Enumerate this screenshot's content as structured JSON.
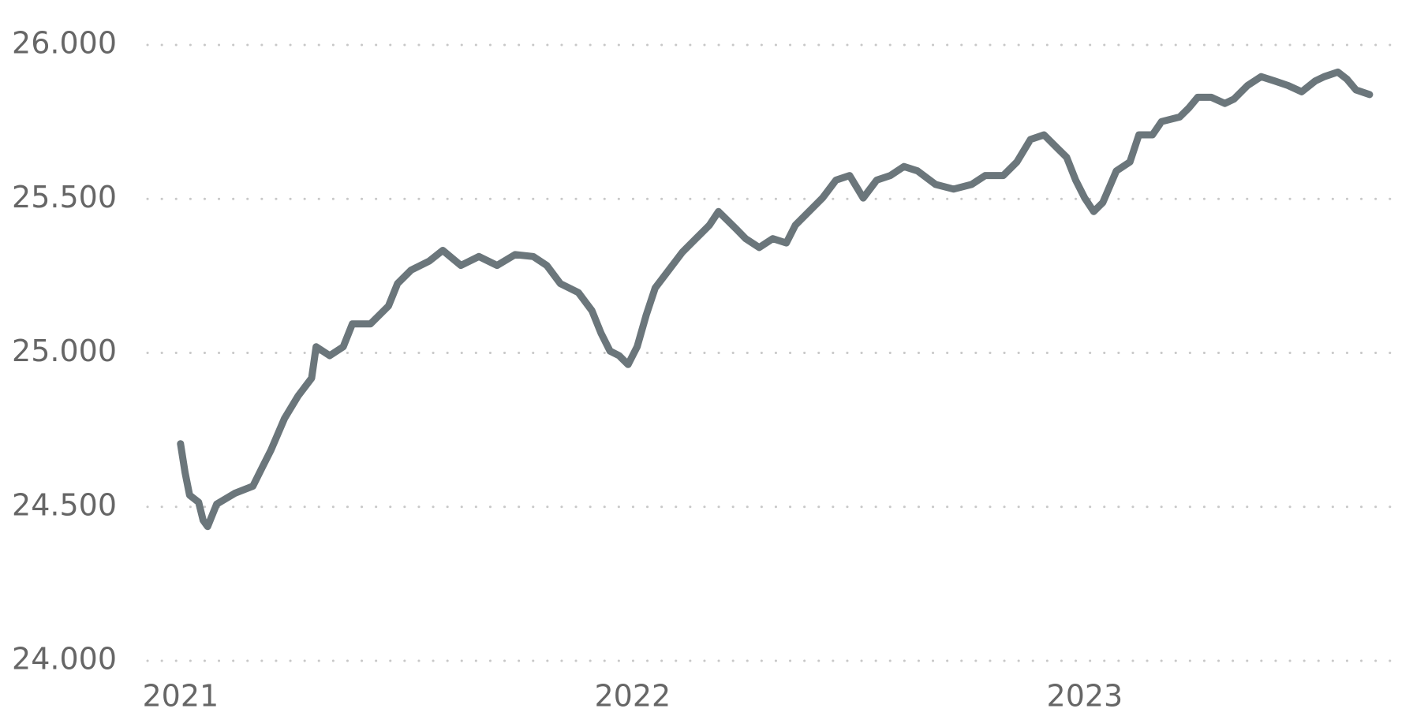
{
  "chart_data": {
    "type": "line",
    "x": [
      2021.0,
      2021.01,
      2021.02,
      2021.04,
      2021.05,
      2021.06,
      2021.08,
      2021.12,
      2021.16,
      2021.18,
      2021.2,
      2021.23,
      2021.26,
      2021.29,
      2021.3,
      2021.33,
      2021.36,
      2021.38,
      2021.42,
      2021.46,
      2021.48,
      2021.51,
      2021.55,
      2021.58,
      2021.62,
      2021.66,
      2021.7,
      2021.74,
      2021.78,
      2021.81,
      2021.84,
      2021.88,
      2021.91,
      2021.93,
      2021.95,
      2021.97,
      2021.99,
      2022.01,
      2022.03,
      2022.05,
      2022.08,
      2022.11,
      2022.14,
      2022.17,
      2022.19,
      2022.21,
      2022.23,
      2022.25,
      2022.28,
      2022.31,
      2022.34,
      2022.36,
      2022.39,
      2022.42,
      2022.45,
      2022.48,
      2022.51,
      2022.54,
      2022.57,
      2022.6,
      2022.63,
      2022.67,
      2022.71,
      2022.75,
      2022.78,
      2022.82,
      2022.85,
      2022.88,
      2022.91,
      2022.94,
      2022.96,
      2022.98,
      2023.0,
      2023.02,
      2023.04,
      2023.07,
      2023.1,
      2023.12,
      2023.15,
      2023.17,
      2023.21,
      2023.23,
      2023.25,
      2023.28,
      2023.31,
      2023.33,
      2023.36,
      2023.39,
      2023.42,
      2023.45,
      2023.48,
      2023.51,
      2023.53,
      2023.56,
      2023.58,
      2023.6,
      2023.63
    ],
    "series": [
      {
        "color": "#6b767b",
        "values": [
          24705,
          24611,
          24538,
          24515,
          24456,
          24436,
          24509,
          24544,
          24567,
          24626,
          24684,
          24787,
          24860,
          24918,
          25020,
          24991,
          25020,
          25094,
          25094,
          25152,
          25225,
          25269,
          25298,
          25333,
          25284,
          25313,
          25284,
          25319,
          25313,
          25284,
          25225,
          25196,
          25137,
          25064,
          25006,
          24991,
          24962,
          25020,
          25123,
          25211,
          25269,
          25327,
          25371,
          25415,
          25459,
          25430,
          25401,
          25371,
          25342,
          25371,
          25357,
          25415,
          25459,
          25503,
          25561,
          25576,
          25503,
          25561,
          25576,
          25605,
          25591,
          25547,
          25532,
          25547,
          25576,
          25576,
          25620,
          25693,
          25708,
          25664,
          25635,
          25561,
          25503,
          25459,
          25488,
          25591,
          25620,
          25708,
          25708,
          25751,
          25766,
          25795,
          25830,
          25830,
          25810,
          25824,
          25868,
          25897,
          25883,
          25868,
          25848,
          25883,
          25897,
          25912,
          25889,
          25854,
          25839
        ]
      }
    ],
    "xlim": [
      2020.92,
      2023.7
    ],
    "xticks": [
      2021,
      2022,
      2023
    ],
    "ylim": [
      24000,
      26000
    ],
    "yticks": [
      {
        "value": 24000,
        "label": "24.000"
      },
      {
        "value": 24500,
        "label": "24.500"
      },
      {
        "value": 25000,
        "label": "25.000"
      },
      {
        "value": 25500,
        "label": "25.500"
      },
      {
        "value": 26000,
        "label": "26.000"
      }
    ],
    "grid": true
  }
}
